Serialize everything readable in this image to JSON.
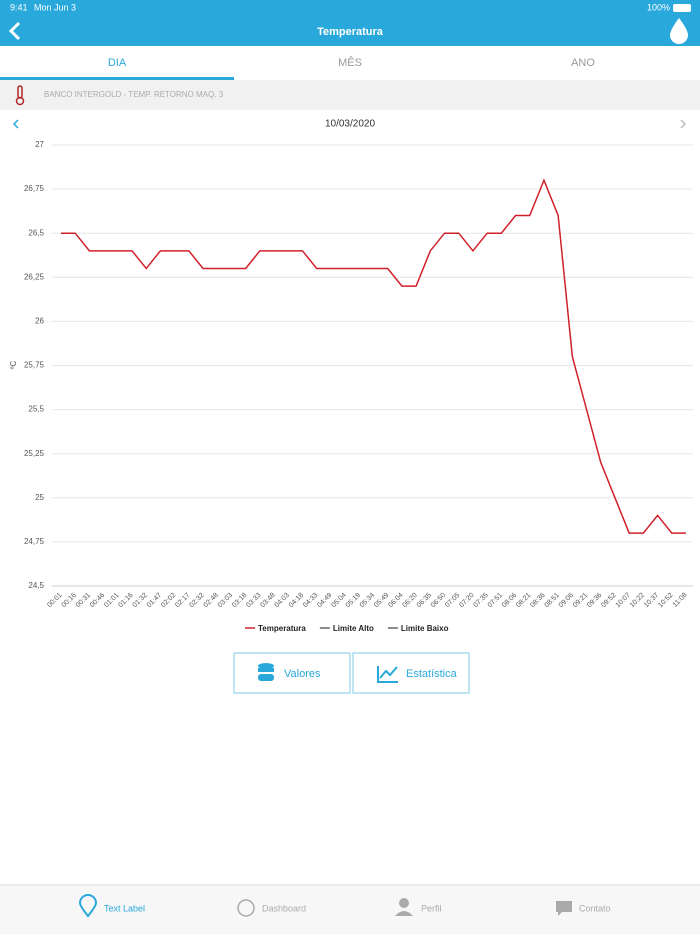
{
  "status_bar": {
    "time": "9:41",
    "date": "Mon Jun 3",
    "battery": "100%"
  },
  "header": {
    "title": "Temperatura"
  },
  "tabs": [
    "DIA",
    "MÊS",
    "ANO"
  ],
  "device": "BANCO INTERGOLD - TEMP. RETORNO MAQ. 3",
  "date": "10/03/2020",
  "chart_data": {
    "type": "line",
    "y_label": "ºC",
    "categories": [
      "00:01",
      "00:16",
      "00:31",
      "00:46",
      "01:01",
      "01:16",
      "01:32",
      "01:47",
      "02:02",
      "02:17",
      "02:32",
      "02:48",
      "03:03",
      "03:18",
      "03:33",
      "03:48",
      "04:03",
      "04:18",
      "04:33",
      "04:49",
      "05:04",
      "05:19",
      "05:34",
      "05:49",
      "06:04",
      "06:20",
      "06:35",
      "06:50",
      "07:05",
      "07:20",
      "07:35",
      "07:51",
      "08:06",
      "08:21",
      "08:36",
      "08:51",
      "09:06",
      "09:21",
      "09:36",
      "09:52",
      "10:07",
      "10:22",
      "10:37",
      "10:52",
      "11:08"
    ],
    "series": [
      {
        "name": "Temperatura",
        "color": "#d0202a",
        "values": [
          26.5,
          26.5,
          26.4,
          26.4,
          26.4,
          26.4,
          26.3,
          26.4,
          26.4,
          26.4,
          26.3,
          26.3,
          26.3,
          26.3,
          26.4,
          26.4,
          26.4,
          26.4,
          26.3,
          26.3,
          26.3,
          26.3,
          26.3,
          26.3,
          26.2,
          26.2,
          26.4,
          26.5,
          26.5,
          26.4,
          26.5,
          26.5,
          26.6,
          26.6,
          26.8,
          26.6,
          25.8,
          25.5,
          25.2,
          25.0,
          24.8,
          24.8,
          24.9,
          24.8,
          24.8
        ]
      }
    ],
    "limits": [
      {
        "name": "Limite Alto",
        "color": "#666666"
      },
      {
        "name": "Limite Baixo",
        "color": "#666666"
      }
    ],
    "ylim": [
      24.5,
      27
    ],
    "yticks": [
      {
        "value": 24.5,
        "label": "24,5"
      },
      {
        "value": 24.75,
        "label": "24,75"
      },
      {
        "value": 25,
        "label": "25"
      },
      {
        "value": 25.25,
        "label": "25,25"
      },
      {
        "value": 25.5,
        "label": "25,5"
      },
      {
        "value": 25.75,
        "label": "25,75"
      },
      {
        "value": 26,
        "label": "26"
      },
      {
        "value": 26.25,
        "label": "26,25"
      },
      {
        "value": 26.5,
        "label": "26,5"
      },
      {
        "value": 26.75,
        "label": "26,75"
      },
      {
        "value": 27,
        "label": "27"
      }
    ],
    "grid": true
  },
  "buttons": [
    "Valores",
    "Estatística"
  ],
  "tab_bar": [
    "Text Label",
    "Dashboard",
    "Perfil",
    "Contato"
  ]
}
